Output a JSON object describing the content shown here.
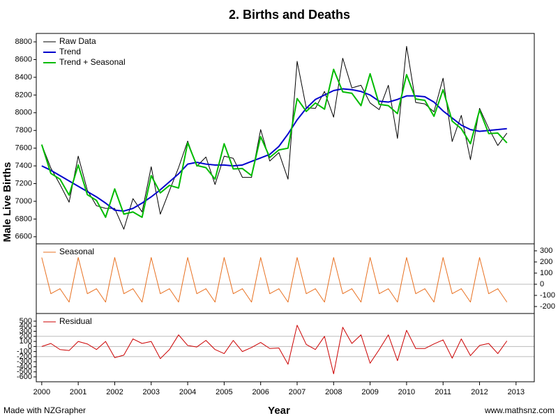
{
  "chart_data": [
    {
      "type": "line",
      "title": "2. Births and Deaths",
      "y_label": "Male Live Births",
      "x": [
        2000,
        2000.25,
        2000.5,
        2000.75,
        2001,
        2001.25,
        2001.5,
        2001.75,
        2002,
        2002.25,
        2002.5,
        2002.75,
        2003,
        2003.25,
        2003.5,
        2003.75,
        2004,
        2004.25,
        2004.5,
        2004.75,
        2005,
        2005.25,
        2005.5,
        2005.75,
        2006,
        2006.25,
        2006.5,
        2006.75,
        2007,
        2007.25,
        2007.5,
        2007.75,
        2008,
        2008.25,
        2008.5,
        2008.75,
        2009,
        2009.25,
        2009.5,
        2009.75,
        2010,
        2010.25,
        2010.5,
        2010.75,
        2011,
        2011.25,
        2011.5,
        2011.75,
        2012,
        2012.25,
        2012.5,
        2012.75
      ],
      "xlim": [
        1999.85,
        2013.5
      ],
      "ylim": [
        6520,
        8895
      ],
      "yticks": [
        6600,
        6800,
        7000,
        7200,
        7400,
        7600,
        7800,
        8000,
        8200,
        8400,
        8600,
        8800
      ],
      "y_axis_side": "left",
      "series": [
        {
          "name": "Raw Data",
          "color": "#000000",
          "width": 1,
          "values": [
            7640,
            7375,
            7190,
            6990,
            7510,
            7125,
            6950,
            6920,
            6920,
            6685,
            7030,
            6880,
            7390,
            6855,
            7120,
            7380,
            7680,
            7395,
            7500,
            7190,
            7510,
            7485,
            7270,
            7270,
            7810,
            7455,
            7550,
            7250,
            8580,
            8055,
            8050,
            8240,
            7950,
            8615,
            8280,
            8310,
            8110,
            8035,
            8310,
            7710,
            8750,
            8115,
            8100,
            8010,
            8390,
            7675,
            7970,
            7470,
            8050,
            7825,
            7630,
            7770
          ]
        },
        {
          "name": "Trend",
          "color": "#0000cc",
          "width": 2,
          "values": [
            7400,
            7350,
            7290,
            7230,
            7170,
            7110,
            7050,
            6980,
            6900,
            6890,
            6920,
            6980,
            7050,
            7130,
            7220,
            7310,
            7420,
            7440,
            7420,
            7410,
            7410,
            7400,
            7410,
            7450,
            7490,
            7530,
            7620,
            7760,
            7920,
            8050,
            8150,
            8200,
            8250,
            8270,
            8260,
            8240,
            8200,
            8130,
            8120,
            8150,
            8190,
            8190,
            8180,
            8120,
            8020,
            7940,
            7860,
            7810,
            7790,
            7800,
            7810,
            7820
          ]
        },
        {
          "name": "Trend + Seasonal",
          "color": "#00bb00",
          "width": 2,
          "values": [
            7640,
            7315,
            7250,
            7070,
            7410,
            7075,
            7010,
            6820,
            7140,
            6855,
            6880,
            6820,
            7290,
            7095,
            7180,
            7150,
            7660,
            7405,
            7380,
            7250,
            7650,
            7365,
            7370,
            7290,
            7730,
            7495,
            7580,
            7600,
            8160,
            8015,
            8110,
            8040,
            8490,
            8235,
            8220,
            8080,
            8440,
            8095,
            8080,
            7990,
            8430,
            8155,
            8140,
            7960,
            8260,
            7905,
            7820,
            7650,
            8030,
            7765,
            7770,
            7660
          ]
        }
      ]
    },
    {
      "type": "line",
      "x": [
        2000,
        2000.25,
        2000.5,
        2000.75,
        2001,
        2001.25,
        2001.5,
        2001.75,
        2002,
        2002.25,
        2002.5,
        2002.75,
        2003,
        2003.25,
        2003.5,
        2003.75,
        2004,
        2004.25,
        2004.5,
        2004.75,
        2005,
        2005.25,
        2005.5,
        2005.75,
        2006,
        2006.25,
        2006.5,
        2006.75,
        2007,
        2007.25,
        2007.5,
        2007.75,
        2008,
        2008.25,
        2008.5,
        2008.75,
        2009,
        2009.25,
        2009.5,
        2009.75,
        2010,
        2010.25,
        2010.5,
        2010.75,
        2011,
        2011.25,
        2011.5,
        2011.75,
        2012,
        2012.25,
        2012.5,
        2012.75
      ],
      "xlim": [
        1999.85,
        2013.5
      ],
      "ylim": [
        -262.5,
        362.5
      ],
      "yticks": [
        -200,
        -100,
        0,
        100,
        200,
        300
      ],
      "y_axis_side": "right",
      "reference_lines": [
        0
      ],
      "series": [
        {
          "name": "Seasonal",
          "color": "#e87020",
          "width": 1,
          "values": [
            240,
            -85,
            -40,
            -160,
            240,
            -85,
            -40,
            -160,
            240,
            -85,
            -40,
            -160,
            240,
            -85,
            -40,
            -160,
            240,
            -85,
            -40,
            -160,
            240,
            -85,
            -40,
            -160,
            240,
            -85,
            -40,
            -160,
            240,
            -85,
            -40,
            -160,
            240,
            -85,
            -40,
            -160,
            240,
            -85,
            -40,
            -160,
            240,
            -85,
            -40,
            -160,
            240,
            -85,
            -40,
            -160,
            240,
            -85,
            -40,
            -160
          ]
        }
      ]
    },
    {
      "type": "line",
      "x_label": "Year",
      "x": [
        2000,
        2000.25,
        2000.5,
        2000.75,
        2001,
        2001.25,
        2001.5,
        2001.75,
        2002,
        2002.25,
        2002.5,
        2002.75,
        2003,
        2003.25,
        2003.5,
        2003.75,
        2004,
        2004.25,
        2004.5,
        2004.75,
        2005,
        2005.25,
        2005.5,
        2005.75,
        2006,
        2006.25,
        2006.5,
        2006.75,
        2007,
        2007.25,
        2007.5,
        2007.75,
        2008,
        2008.25,
        2008.5,
        2008.75,
        2009,
        2009.25,
        2009.5,
        2009.75,
        2010,
        2010.25,
        2010.5,
        2010.75,
        2011,
        2011.25,
        2011.5,
        2011.75,
        2012,
        2012.25,
        2012.5,
        2012.75
      ],
      "xlim": [
        1999.85,
        2013.5
      ],
      "ylim": [
        -696,
        651
      ],
      "xticks": [
        2000,
        2001,
        2002,
        2003,
        2004,
        2005,
        2006,
        2007,
        2008,
        2009,
        2010,
        2011,
        2012,
        2013
      ],
      "yticks": [
        -600,
        -500,
        -400,
        -300,
        -200,
        -100,
        0,
        100,
        200,
        300,
        400,
        500
      ],
      "y_axis_side": "left",
      "reference_lines": [
        -200,
        0,
        200
      ],
      "series": [
        {
          "name": "Residual",
          "color": "#cc0000",
          "width": 1,
          "values": [
            0,
            60,
            -60,
            -80,
            100,
            50,
            -60,
            100,
            -220,
            -170,
            150,
            60,
            100,
            -240,
            -60,
            230,
            20,
            -10,
            120,
            -60,
            -140,
            120,
            -100,
            -20,
            80,
            -40,
            -30,
            -350,
            420,
            40,
            -60,
            200,
            -540,
            380,
            60,
            230,
            -330,
            -60,
            230,
            -280,
            320,
            -40,
            -40,
            50,
            130,
            -230,
            150,
            -180,
            20,
            60,
            -140,
            110
          ]
        }
      ]
    }
  ],
  "footer": {
    "left": "Made with NZGrapher",
    "right": "www.mathsnz.com"
  }
}
